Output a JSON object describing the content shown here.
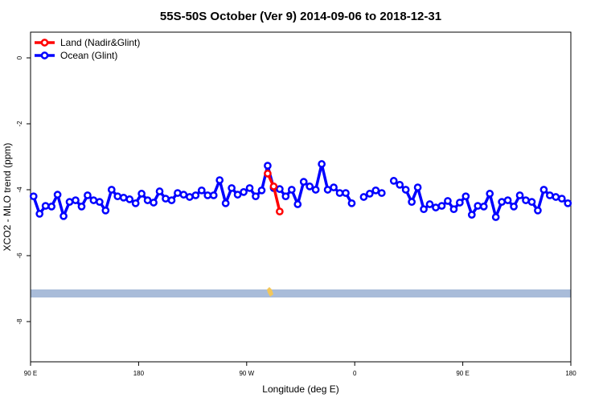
{
  "chart_data": {
    "type": "line",
    "title": "55S-50S October (Ver 9)   2014-09-06 to 2018-12-31",
    "xlabel": "Longitude (deg E)",
    "ylabel": "XCO2 - MLO trend (ppm)",
    "xlim": [
      90,
      540
    ],
    "ylim": [
      -9.22,
      0.78
    ],
    "xticks": [
      {
        "value": 90,
        "label": "90 E"
      },
      180,
      {
        "value": 270,
        "label": "90 W"
      },
      {
        "value": 360,
        "label": "0"
      },
      {
        "value": 450,
        "label": "90 E"
      },
      {
        "value": 540,
        "label": "180"
      }
    ],
    "yticks": [
      0,
      -2,
      -4,
      -6,
      -8
    ],
    "legend": "top-left",
    "series": [
      {
        "name": "Land (Nadir&Glint)",
        "color": "#ff0000",
        "x": [
          287.5,
          292.5,
          297.5
        ],
        "values": [
          -3.51,
          -3.9,
          -4.66
        ]
      },
      {
        "name": "Ocean (Glint)",
        "color": "#0000ff",
        "x": [
          92.5,
          97.5,
          102.5,
          107.5,
          112.5,
          117.5,
          122.5,
          127.5,
          132.5,
          137.5,
          142.5,
          147.5,
          152.5,
          157.5,
          162.5,
          167.5,
          172.5,
          177.5,
          182.5,
          187.5,
          192.5,
          197.5,
          202.5,
          207.5,
          212.5,
          217.5,
          222.5,
          227.5,
          232.5,
          237.5,
          242.5,
          247.5,
          252.5,
          257.5,
          262.5,
          267.5,
          272.5,
          277.5,
          282.5,
          287.5,
          292.5,
          297.5,
          302.5,
          307.5,
          312.5,
          317.5,
          322.5,
          327.5,
          332.5,
          337.5,
          342.5,
          347.5,
          352.5,
          357.5,
          362.5,
          367.5,
          372.5,
          377.5,
          382.5,
          387.5,
          392.5,
          397.5,
          402.5,
          407.5,
          412.5,
          417.5,
          422.5,
          427.5,
          432.5,
          437.5,
          442.5,
          447.5,
          452.5,
          457.5,
          462.5,
          467.5,
          472.5,
          477.5,
          482.5,
          487.5,
          492.5,
          497.5,
          502.5,
          507.5,
          512.5,
          517.5,
          522.5,
          527.5,
          532.5,
          537.5
        ],
        "values": [
          -4.2,
          -4.73,
          -4.49,
          -4.51,
          -4.15,
          -4.8,
          -4.37,
          -4.32,
          -4.51,
          -4.17,
          -4.32,
          -4.37,
          -4.63,
          -4.0,
          -4.2,
          -4.24,
          -4.29,
          -4.41,
          -4.12,
          -4.32,
          -4.39,
          -4.05,
          -4.27,
          -4.32,
          -4.1,
          -4.15,
          -4.22,
          -4.17,
          -4.02,
          -4.17,
          -4.17,
          -3.71,
          -4.41,
          -3.95,
          -4.15,
          -4.07,
          -3.95,
          -4.2,
          -4.02,
          -3.27,
          -3.95,
          -3.98,
          -4.2,
          -4.0,
          -4.44,
          -3.76,
          -3.9,
          -4.0,
          -3.22,
          -4.0,
          -3.93,
          -4.1,
          -4.1,
          -4.41,
          null,
          -4.22,
          -4.12,
          -4.02,
          -4.1,
          null,
          -3.73,
          -3.85,
          -4.0,
          -4.37,
          -3.93,
          -4.59,
          -4.44,
          -4.54,
          -4.49,
          -4.34,
          -4.59,
          -4.39,
          -4.2,
          -4.76,
          -4.49,
          -4.51,
          -4.12,
          -4.83,
          -4.37,
          -4.32,
          -4.51,
          -4.17,
          -4.32,
          -4.37,
          -4.63,
          -4.0,
          -4.17,
          -4.22,
          -4.27,
          -4.41
        ]
      }
    ]
  }
}
